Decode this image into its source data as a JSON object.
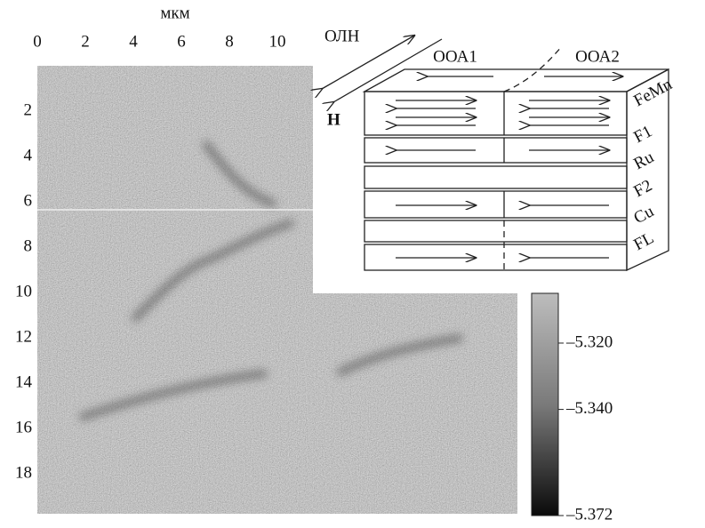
{
  "figure": {
    "x_axis": {
      "label": "мкм",
      "lim": [
        0,
        20
      ],
      "ticks": [
        0,
        2,
        4,
        6,
        8,
        10
      ]
    },
    "y_axis": {
      "lim": [
        0,
        20
      ],
      "ticks": [
        2,
        4,
        6,
        8,
        10,
        12,
        14,
        16,
        18
      ]
    },
    "colorbar": {
      "lim": [
        -5.372,
        -5.305
      ],
      "ticks": [
        {
          "value": -5.32,
          "label": "–5.320"
        },
        {
          "value": -5.34,
          "label": "–5.340"
        },
        {
          "value": -5.372,
          "label": "–5.372"
        }
      ]
    },
    "diagram": {
      "easy_axis": "ОЛН",
      "field": "H",
      "domains": [
        "ООА1",
        "ООА2"
      ],
      "layers": [
        "FeMn",
        "F1",
        "Ru",
        "F2",
        "Cu",
        "FL"
      ]
    }
  }
}
